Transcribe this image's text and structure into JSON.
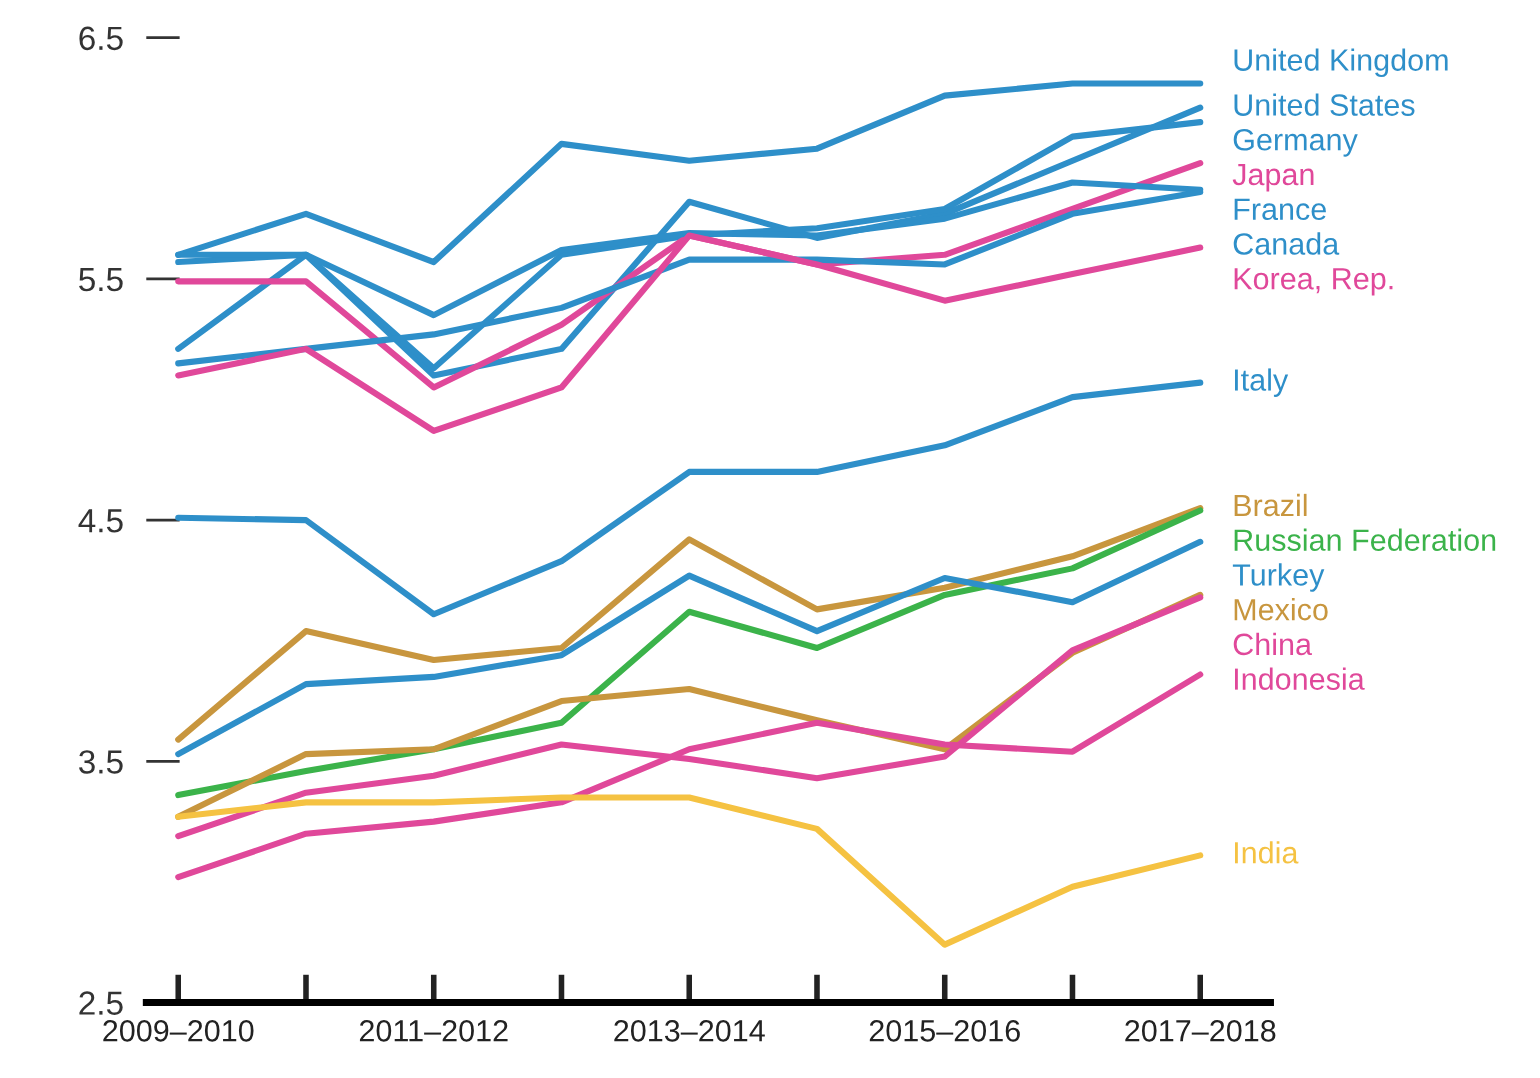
{
  "chart_data": {
    "type": "line",
    "categories": [
      "2009–2010",
      null,
      "2011–2012",
      null,
      "2013–2014",
      null,
      "2015–2016",
      null,
      "2017–2018"
    ],
    "ylim": [
      2.5,
      6.5
    ],
    "yticks": [
      2.5,
      3.5,
      4.5,
      5.5,
      6.5
    ],
    "grid": false,
    "legend": false,
    "marker": "none",
    "line_style": "solid",
    "series": [
      {
        "name": "United Kingdom",
        "color": "#2e8fc9",
        "values": [
          5.6,
          5.77,
          5.57,
          6.06,
          5.99,
          6.04,
          6.26,
          6.31,
          6.31
        ]
      },
      {
        "name": "United States",
        "color": "#2e8fc9",
        "values": [
          5.21,
          5.6,
          5.1,
          5.21,
          5.82,
          5.67,
          5.77,
          5.99,
          6.21
        ]
      },
      {
        "name": "Germany",
        "color": "#2e8fc9",
        "values": [
          5.57,
          5.6,
          5.13,
          5.6,
          5.68,
          5.71,
          5.79,
          6.09,
          6.15
        ]
      },
      {
        "name": "Japan",
        "color": "#e0489a",
        "values": [
          5.49,
          5.49,
          5.05,
          5.31,
          5.68,
          5.56,
          5.6,
          5.79,
          5.98
        ]
      },
      {
        "name": "France",
        "color": "#2e8fc9",
        "values": [
          5.6,
          5.6,
          5.35,
          5.62,
          5.69,
          5.68,
          5.75,
          5.9,
          5.87
        ]
      },
      {
        "name": "Canada",
        "color": "#2e8fc9",
        "values": [
          5.15,
          5.21,
          5.27,
          5.38,
          5.58,
          5.58,
          5.56,
          5.77,
          5.86
        ]
      },
      {
        "name": "Korea, Rep.",
        "color": "#e0489a",
        "values": [
          5.1,
          5.21,
          4.87,
          5.05,
          5.68,
          5.56,
          5.41,
          5.52,
          5.63
        ]
      },
      {
        "name": "Italy",
        "color": "#2e8fc9",
        "values": [
          4.51,
          4.5,
          4.11,
          4.33,
          4.7,
          4.7,
          4.81,
          5.01,
          5.07
        ]
      },
      {
        "name": "Brazil",
        "color": "#c8963e",
        "values": [
          3.59,
          4.04,
          3.92,
          3.97,
          4.42,
          4.13,
          4.22,
          4.35,
          4.55
        ]
      },
      {
        "name": "Russian Federation",
        "color": "#3bb34a",
        "values": [
          3.36,
          3.46,
          3.55,
          3.66,
          4.12,
          3.97,
          4.19,
          4.3,
          4.54
        ]
      },
      {
        "name": "Turkey",
        "color": "#2e8fc9",
        "values": [
          3.53,
          3.82,
          3.85,
          3.94,
          4.27,
          4.04,
          4.26,
          4.16,
          4.41
        ]
      },
      {
        "name": "Mexico",
        "color": "#c8963e",
        "values": [
          3.27,
          3.53,
          3.55,
          3.75,
          3.8,
          3.67,
          3.55,
          3.95,
          4.19
        ]
      },
      {
        "name": "China",
        "color": "#e0489a",
        "values": [
          3.19,
          3.37,
          3.44,
          3.57,
          3.51,
          3.43,
          3.52,
          3.96,
          4.18
        ]
      },
      {
        "name": "Indonesia",
        "color": "#e0489a",
        "values": [
          3.02,
          3.2,
          3.25,
          3.33,
          3.55,
          3.66,
          3.57,
          3.54,
          3.86
        ]
      },
      {
        "name": "India",
        "color": "#f5c242",
        "values": [
          3.27,
          3.33,
          3.33,
          3.35,
          3.35,
          3.22,
          2.74,
          2.98,
          3.11
        ]
      }
    ]
  }
}
